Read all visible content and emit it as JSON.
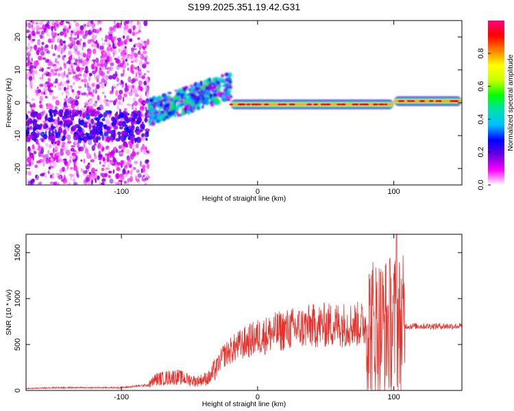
{
  "title": "S199.2025.351.19.42.G31",
  "chart_data": [
    {
      "type": "heatmap",
      "xlabel": "Height of straight line (km)",
      "ylabel": "Frequency (Hz)",
      "xlim": [
        -170,
        150
      ],
      "ylim": [
        -25,
        25
      ],
      "xticks": [
        -100,
        0,
        100
      ],
      "yticks": [
        -20,
        -10,
        0,
        10,
        20
      ],
      "colorbar": {
        "label": "Normalized spectral amplitude",
        "range": [
          0,
          1
        ],
        "ticks": [
          "0.0",
          "0.2",
          "0.4",
          "0.6",
          "0.8"
        ],
        "colormap": [
          "#ffffff",
          "#ff00ff",
          "#6a00e0",
          "#0000ff",
          "#00bfff",
          "#00e0b0",
          "#00ff00",
          "#c8ff00",
          "#ffff00",
          "#ff8000",
          "#ff0000",
          "#ff0080"
        ]
      },
      "features": [
        {
          "name": "diffuse noise",
          "x_range": [
            -170,
            -80
          ],
          "freq_range": [
            -25,
            25
          ],
          "amplitude": 0.1
        },
        {
          "name": "low-frequency band",
          "x_range": [
            -170,
            -80
          ],
          "freq_center": -7,
          "amplitude": 0.2
        },
        {
          "name": "rising scattered band",
          "x_range": [
            -80,
            -20
          ],
          "freq_start": -3,
          "freq_end": 5,
          "amplitude": 0.35
        },
        {
          "name": "stable carrier line",
          "x_range": [
            -20,
            100
          ],
          "freq_center": -0.5,
          "amplitude": 0.9
        },
        {
          "name": "stable carrier line after transition",
          "x_range": [
            100,
            150
          ],
          "freq_center": 0.5,
          "amplitude": 0.95
        }
      ]
    },
    {
      "type": "line",
      "xlabel": "Height of straight line (km)",
      "ylabel": "SNR (10 * v/v)",
      "xlim": [
        -170,
        150
      ],
      "ylim": [
        0,
        1700
      ],
      "xticks": [
        -100,
        0,
        100
      ],
      "yticks": [
        0,
        500,
        1000,
        1500
      ],
      "color": "#e8302a",
      "profile": [
        {
          "x": -170,
          "y": 20
        },
        {
          "x": -150,
          "y": 30
        },
        {
          "x": -130,
          "y": 30
        },
        {
          "x": -100,
          "y": 30
        },
        {
          "x": -80,
          "y": 60
        },
        {
          "x": -75,
          "y": 120
        },
        {
          "x": -60,
          "y": 150
        },
        {
          "x": -45,
          "y": 100
        },
        {
          "x": -35,
          "y": 140
        },
        {
          "x": -25,
          "y": 380
        },
        {
          "x": -15,
          "y": 480
        },
        {
          "x": 0,
          "y": 580
        },
        {
          "x": 20,
          "y": 660
        },
        {
          "x": 40,
          "y": 700
        },
        {
          "x": 60,
          "y": 720
        },
        {
          "x": 80,
          "y": 720
        },
        {
          "x": 92,
          "y": 700
        },
        {
          "x": 102,
          "y": 720
        },
        {
          "x": 110,
          "y": 700
        },
        {
          "x": 150,
          "y": 700
        }
      ],
      "peak": {
        "x": 102,
        "y": 1700
      }
    }
  ]
}
